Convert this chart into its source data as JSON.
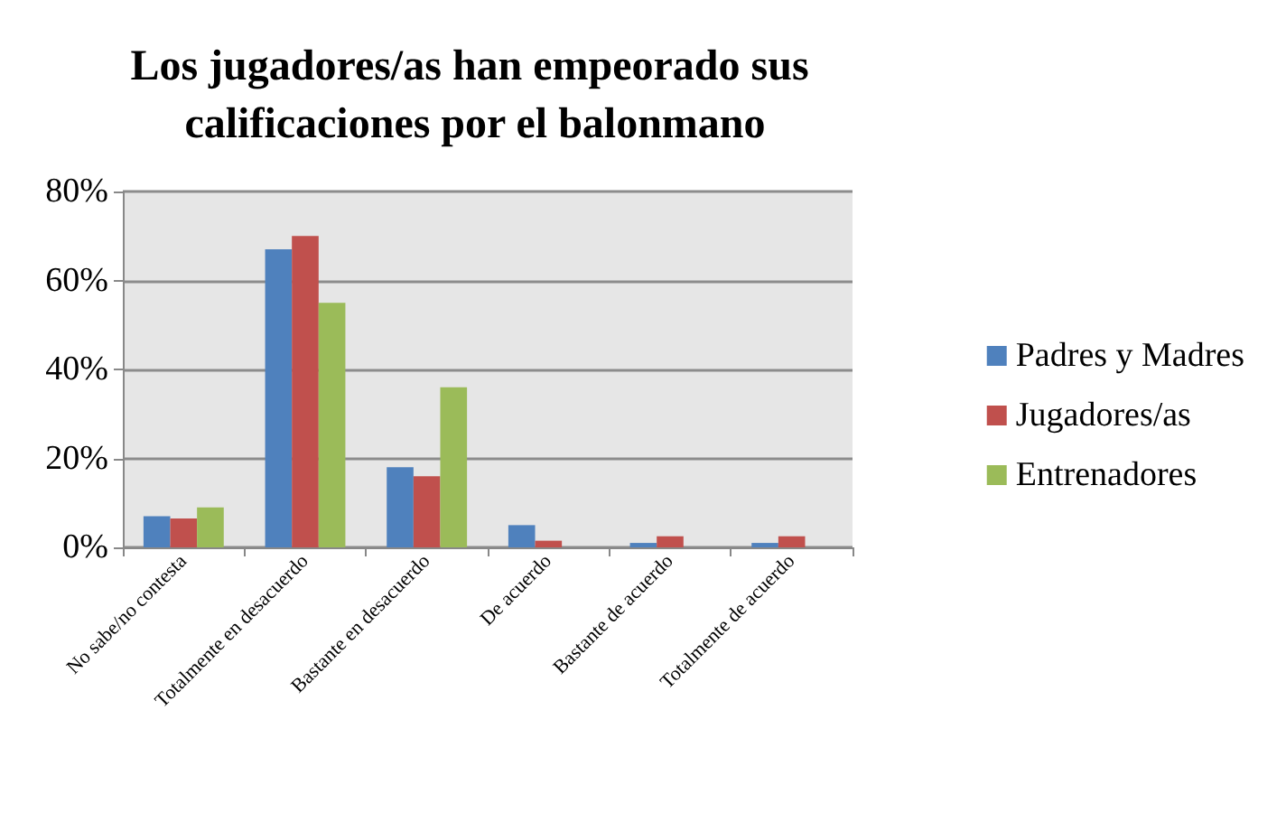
{
  "chart_data": {
    "type": "bar",
    "title": "Los jugadores/as han empeorado sus calificaciones por el balonmano",
    "categories": [
      "No sabe/no contesta",
      "Totalmente en desacuerdo",
      "Bastante en desacuerdo",
      "De acuerdo",
      "Bastante de acuerdo",
      "Totalmente de acuerdo"
    ],
    "series": [
      {
        "name": "Padres y Madres",
        "color": "#4f81bd",
        "values": [
          7,
          67,
          18,
          5,
          1,
          1
        ]
      },
      {
        "name": "Jugadores/as",
        "color": "#c0504d",
        "values": [
          6.5,
          70,
          16,
          1.5,
          2.5,
          2.5
        ]
      },
      {
        "name": "Entrenadores",
        "color": "#9bbb59",
        "values": [
          9,
          55,
          36,
          0,
          0,
          0
        ]
      }
    ],
    "ylim": [
      0,
      80
    ],
    "yticks": [
      {
        "value": 0,
        "label": "0%"
      },
      {
        "value": 20,
        "label": "20%"
      },
      {
        "value": 40,
        "label": "40%"
      },
      {
        "value": 60,
        "label": "60%"
      },
      {
        "value": 80,
        "label": "80%"
      }
    ],
    "grid": "y",
    "legend": "right"
  }
}
